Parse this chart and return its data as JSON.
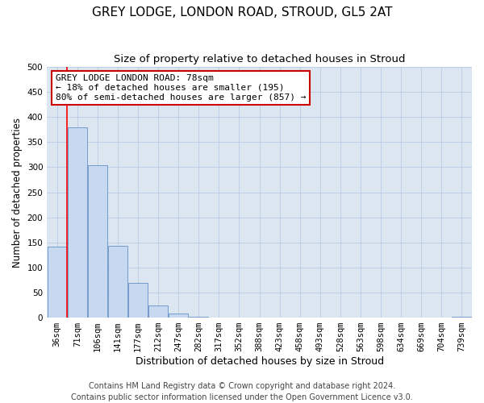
{
  "title": "GREY LODGE, LONDON ROAD, STROUD, GL5 2AT",
  "subtitle": "Size of property relative to detached houses in Stroud",
  "xlabel": "Distribution of detached houses by size in Stroud",
  "ylabel": "Number of detached properties",
  "bin_labels": [
    "36sqm",
    "71sqm",
    "106sqm",
    "141sqm",
    "177sqm",
    "212sqm",
    "247sqm",
    "282sqm",
    "317sqm",
    "352sqm",
    "388sqm",
    "423sqm",
    "458sqm",
    "493sqm",
    "528sqm",
    "563sqm",
    "598sqm",
    "634sqm",
    "669sqm",
    "704sqm",
    "739sqm"
  ],
  "bar_heights": [
    141,
    380,
    304,
    143,
    69,
    25,
    8,
    1,
    0,
    0,
    0,
    0,
    0,
    0,
    0,
    0,
    0,
    0,
    0,
    0,
    2
  ],
  "bar_color": "#c6d9f1",
  "bar_edge_color": "#4f81bd",
  "vline_color": "#ff0000",
  "ylim": [
    0,
    500
  ],
  "yticks": [
    0,
    50,
    100,
    150,
    200,
    250,
    300,
    350,
    400,
    450,
    500
  ],
  "annotation_title": "GREY LODGE LONDON ROAD: 78sqm",
  "annotation_line1": "← 18% of detached houses are smaller (195)",
  "annotation_line2": "80% of semi-detached houses are larger (857) →",
  "annotation_box_facecolor": "#ffffff",
  "annotation_box_edgecolor": "#cc0000",
  "footer1": "Contains HM Land Registry data © Crown copyright and database right 2024.",
  "footer2": "Contains public sector information licensed under the Open Government Licence v3.0.",
  "background_color": "#ffffff",
  "plot_bg_color": "#dce6f1",
  "grid_color": "#b8cce4",
  "title_fontsize": 11,
  "subtitle_fontsize": 9.5,
  "xlabel_fontsize": 9,
  "ylabel_fontsize": 8.5,
  "tick_fontsize": 7.5,
  "annot_fontsize": 8,
  "footer_fontsize": 7
}
